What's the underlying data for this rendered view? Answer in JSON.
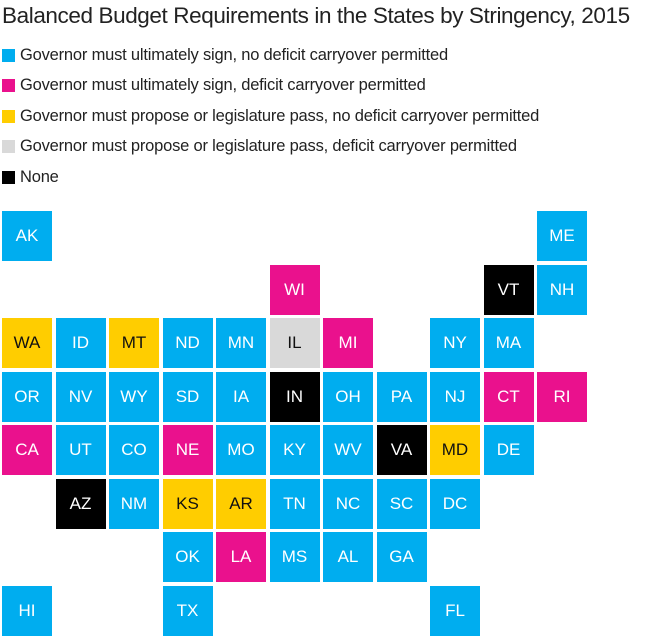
{
  "chart_data": {
    "type": "tile-grid-map",
    "title": "Balanced Budget Requirements in the States by Stringency, 2015",
    "legend_placement": "top-left",
    "categories": [
      {
        "id": "sign_no_carry",
        "label": "Governor must ultimately sign, no deficit carryover permitted",
        "color": "#00adef",
        "text_color": "#ffffff"
      },
      {
        "id": "sign_carry",
        "label": "Governor must ultimately sign, deficit carryover permitted",
        "color": "#ea118d",
        "text_color": "#ffffff"
      },
      {
        "id": "propose_no_carry",
        "label": "Governor must propose or legislature pass, no deficit carryover permitted",
        "color": "#ffcd00",
        "text_color": "#111111"
      },
      {
        "id": "propose_carry",
        "label": "Governor must propose or legislature pass, deficit carryover permitted",
        "color": "#d9d9d9",
        "text_color": "#111111"
      },
      {
        "id": "none",
        "label": "None",
        "color": "#000000",
        "text_color": "#ffffff"
      }
    ],
    "states": [
      {
        "abbr": "AK",
        "col": 0,
        "row": 0,
        "category": "sign_no_carry"
      },
      {
        "abbr": "ME",
        "col": 10,
        "row": 0,
        "category": "sign_no_carry"
      },
      {
        "abbr": "WI",
        "col": 5,
        "row": 1,
        "category": "sign_carry"
      },
      {
        "abbr": "VT",
        "col": 9,
        "row": 1,
        "category": "none"
      },
      {
        "abbr": "NH",
        "col": 10,
        "row": 1,
        "category": "sign_no_carry"
      },
      {
        "abbr": "WA",
        "col": 0,
        "row": 2,
        "category": "propose_no_carry"
      },
      {
        "abbr": "ID",
        "col": 1,
        "row": 2,
        "category": "sign_no_carry"
      },
      {
        "abbr": "MT",
        "col": 2,
        "row": 2,
        "category": "propose_no_carry"
      },
      {
        "abbr": "ND",
        "col": 3,
        "row": 2,
        "category": "sign_no_carry"
      },
      {
        "abbr": "MN",
        "col": 4,
        "row": 2,
        "category": "sign_no_carry"
      },
      {
        "abbr": "IL",
        "col": 5,
        "row": 2,
        "category": "propose_carry"
      },
      {
        "abbr": "MI",
        "col": 6,
        "row": 2,
        "category": "sign_carry"
      },
      {
        "abbr": "NY",
        "col": 8,
        "row": 2,
        "category": "sign_no_carry"
      },
      {
        "abbr": "MA",
        "col": 9,
        "row": 2,
        "category": "sign_no_carry"
      },
      {
        "abbr": "OR",
        "col": 0,
        "row": 3,
        "category": "sign_no_carry"
      },
      {
        "abbr": "NV",
        "col": 1,
        "row": 3,
        "category": "sign_no_carry"
      },
      {
        "abbr": "WY",
        "col": 2,
        "row": 3,
        "category": "sign_no_carry"
      },
      {
        "abbr": "SD",
        "col": 3,
        "row": 3,
        "category": "sign_no_carry"
      },
      {
        "abbr": "IA",
        "col": 4,
        "row": 3,
        "category": "sign_no_carry"
      },
      {
        "abbr": "IN",
        "col": 5,
        "row": 3,
        "category": "none"
      },
      {
        "abbr": "OH",
        "col": 6,
        "row": 3,
        "category": "sign_no_carry"
      },
      {
        "abbr": "PA",
        "col": 7,
        "row": 3,
        "category": "sign_no_carry"
      },
      {
        "abbr": "NJ",
        "col": 8,
        "row": 3,
        "category": "sign_no_carry"
      },
      {
        "abbr": "CT",
        "col": 9,
        "row": 3,
        "category": "sign_carry"
      },
      {
        "abbr": "RI",
        "col": 10,
        "row": 3,
        "category": "sign_carry"
      },
      {
        "abbr": "CA",
        "col": 0,
        "row": 4,
        "category": "sign_carry"
      },
      {
        "abbr": "UT",
        "col": 1,
        "row": 4,
        "category": "sign_no_carry"
      },
      {
        "abbr": "CO",
        "col": 2,
        "row": 4,
        "category": "sign_no_carry"
      },
      {
        "abbr": "NE",
        "col": 3,
        "row": 4,
        "category": "sign_carry"
      },
      {
        "abbr": "MO",
        "col": 4,
        "row": 4,
        "category": "sign_no_carry"
      },
      {
        "abbr": "KY",
        "col": 5,
        "row": 4,
        "category": "sign_no_carry"
      },
      {
        "abbr": "WV",
        "col": 6,
        "row": 4,
        "category": "sign_no_carry"
      },
      {
        "abbr": "VA",
        "col": 7,
        "row": 4,
        "category": "none"
      },
      {
        "abbr": "MD",
        "col": 8,
        "row": 4,
        "category": "propose_no_carry"
      },
      {
        "abbr": "DE",
        "col": 9,
        "row": 4,
        "category": "sign_no_carry"
      },
      {
        "abbr": "AZ",
        "col": 1,
        "row": 5,
        "category": "none"
      },
      {
        "abbr": "NM",
        "col": 2,
        "row": 5,
        "category": "sign_no_carry"
      },
      {
        "abbr": "KS",
        "col": 3,
        "row": 5,
        "category": "propose_no_carry"
      },
      {
        "abbr": "AR",
        "col": 4,
        "row": 5,
        "category": "propose_no_carry"
      },
      {
        "abbr": "TN",
        "col": 5,
        "row": 5,
        "category": "sign_no_carry"
      },
      {
        "abbr": "NC",
        "col": 6,
        "row": 5,
        "category": "sign_no_carry"
      },
      {
        "abbr": "SC",
        "col": 7,
        "row": 5,
        "category": "sign_no_carry"
      },
      {
        "abbr": "DC",
        "col": 8,
        "row": 5,
        "category": "sign_no_carry"
      },
      {
        "abbr": "OK",
        "col": 3,
        "row": 6,
        "category": "sign_no_carry"
      },
      {
        "abbr": "LA",
        "col": 4,
        "row": 6,
        "category": "sign_carry"
      },
      {
        "abbr": "MS",
        "col": 5,
        "row": 6,
        "category": "sign_no_carry"
      },
      {
        "abbr": "AL",
        "col": 6,
        "row": 6,
        "category": "sign_no_carry"
      },
      {
        "abbr": "GA",
        "col": 7,
        "row": 6,
        "category": "sign_no_carry"
      },
      {
        "abbr": "HI",
        "col": 0,
        "row": 7,
        "category": "sign_no_carry"
      },
      {
        "abbr": "TX",
        "col": 3,
        "row": 7,
        "category": "sign_no_carry"
      },
      {
        "abbr": "FL",
        "col": 8,
        "row": 7,
        "category": "sign_no_carry"
      }
    ]
  }
}
